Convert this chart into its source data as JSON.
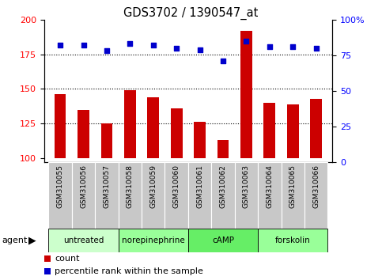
{
  "title": "GDS3702 / 1390547_at",
  "samples": [
    "GSM310055",
    "GSM310056",
    "GSM310057",
    "GSM310058",
    "GSM310059",
    "GSM310060",
    "GSM310061",
    "GSM310062",
    "GSM310063",
    "GSM310064",
    "GSM310065",
    "GSM310066"
  ],
  "counts": [
    146,
    135,
    125,
    149,
    144,
    136,
    126,
    113,
    192,
    140,
    139,
    143
  ],
  "percentile": [
    82,
    82,
    78,
    83,
    82,
    80,
    79,
    71,
    85,
    81,
    81,
    80
  ],
  "agents": [
    {
      "label": "untreated",
      "start": 0,
      "end": 3,
      "color": "#ccffcc"
    },
    {
      "label": "norepinephrine",
      "start": 3,
      "end": 6,
      "color": "#99ff99"
    },
    {
      "label": "cAMP",
      "start": 6,
      "end": 9,
      "color": "#66ee66"
    },
    {
      "label": "forskolin",
      "start": 9,
      "end": 12,
      "color": "#99ff99"
    }
  ],
  "ylim_left": [
    97,
    200
  ],
  "yticks_left": [
    100,
    125,
    150,
    175,
    200
  ],
  "ylim_right": [
    0,
    100
  ],
  "yticks_right": [
    0,
    25,
    50,
    75,
    100
  ],
  "bar_color": "#cc0000",
  "dot_color": "#0000cc",
  "bar_width": 0.5,
  "background_color": "#ffffff",
  "label_area_color": "#c8c8c8",
  "legend_count_label": "count",
  "legend_pct_label": "percentile rank within the sample"
}
